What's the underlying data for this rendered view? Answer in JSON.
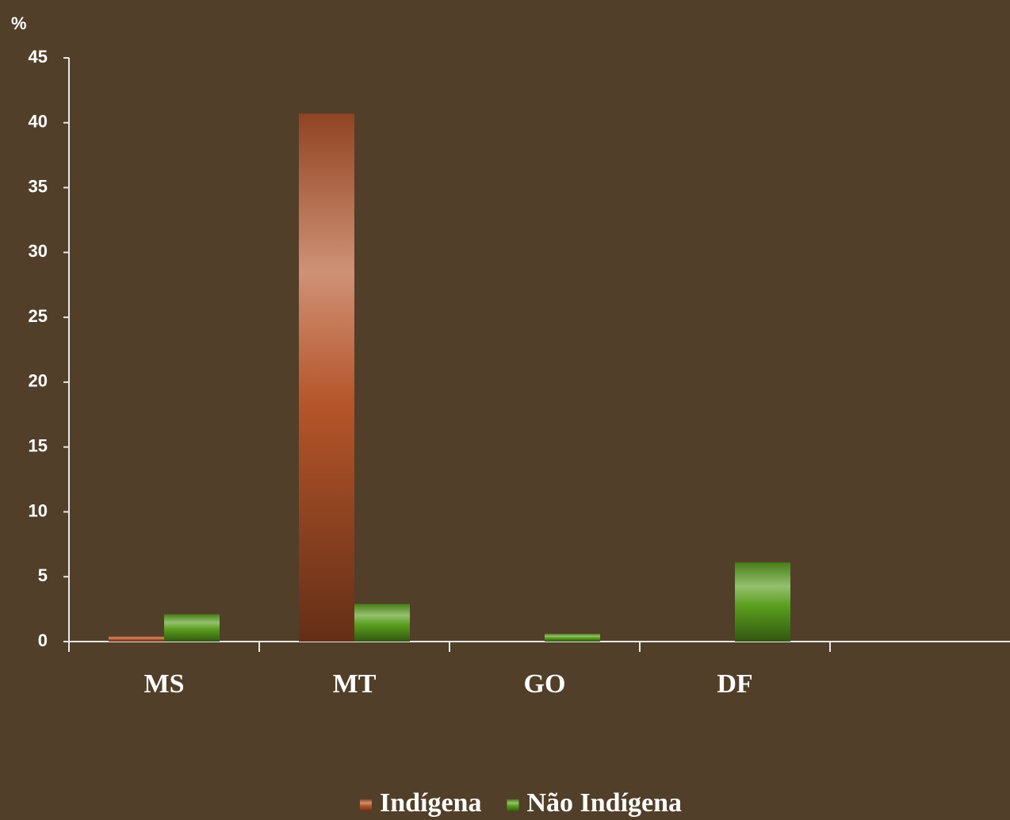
{
  "chart_data": {
    "type": "bar",
    "y_label": "%",
    "categories": [
      "MS",
      "MT",
      "GO",
      "DF",
      null
    ],
    "series": [
      {
        "name": "Indígena",
        "color": "#b5552a",
        "values": [
          0.4,
          40.7,
          0,
          0,
          null
        ]
      },
      {
        "name": "Não Indígena",
        "color": "#5a9e1e",
        "values": [
          2.1,
          2.9,
          0.6,
          6.1,
          null
        ]
      }
    ],
    "ylim": [
      0,
      45
    ],
    "yticks": [
      0,
      5,
      10,
      15,
      20,
      25,
      30,
      35,
      40,
      45
    ],
    "grid": false,
    "legend": "bottom"
  }
}
